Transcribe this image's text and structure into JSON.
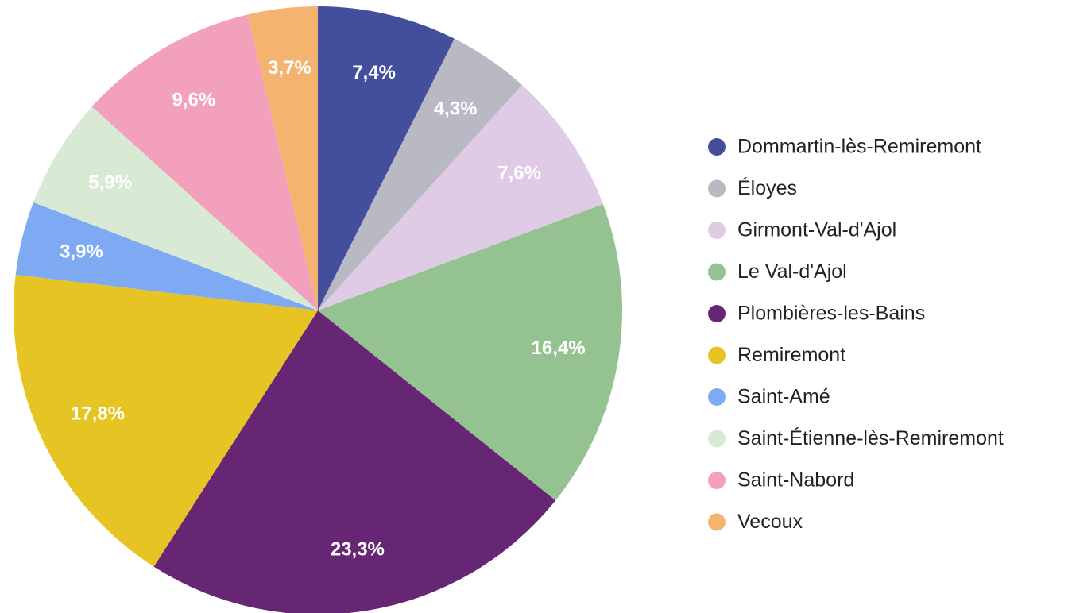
{
  "chart_data": {
    "type": "pie",
    "categories": [
      "Dommartin-lès-Remiremont",
      "Éloyes",
      "Girmont-Val-d'Ajol",
      "Le Val-d'Ajol",
      "Plombières-les-Bains",
      "Remiremont",
      "Saint-Amé",
      "Saint-Étienne-lès-Remiremont",
      "Saint-Nabord",
      "Vecoux"
    ],
    "values": [
      7.4,
      4.3,
      7.6,
      16.4,
      23.3,
      17.8,
      3.9,
      5.9,
      9.6,
      3.7
    ],
    "value_labels": [
      "7,4%",
      "4,3%",
      "7,6%",
      "16,4%",
      "23,3%",
      "17,8%",
      "3,9%",
      "5,9%",
      "9,6%",
      "3,7%"
    ],
    "colors": [
      "#434f9c",
      "#b9b9c4",
      "#dfcbe5",
      "#94c290",
      "#662673",
      "#e6c424",
      "#7eaaf3",
      "#d8ead4",
      "#f2a0bc",
      "#f5b370"
    ],
    "legend": "right"
  }
}
